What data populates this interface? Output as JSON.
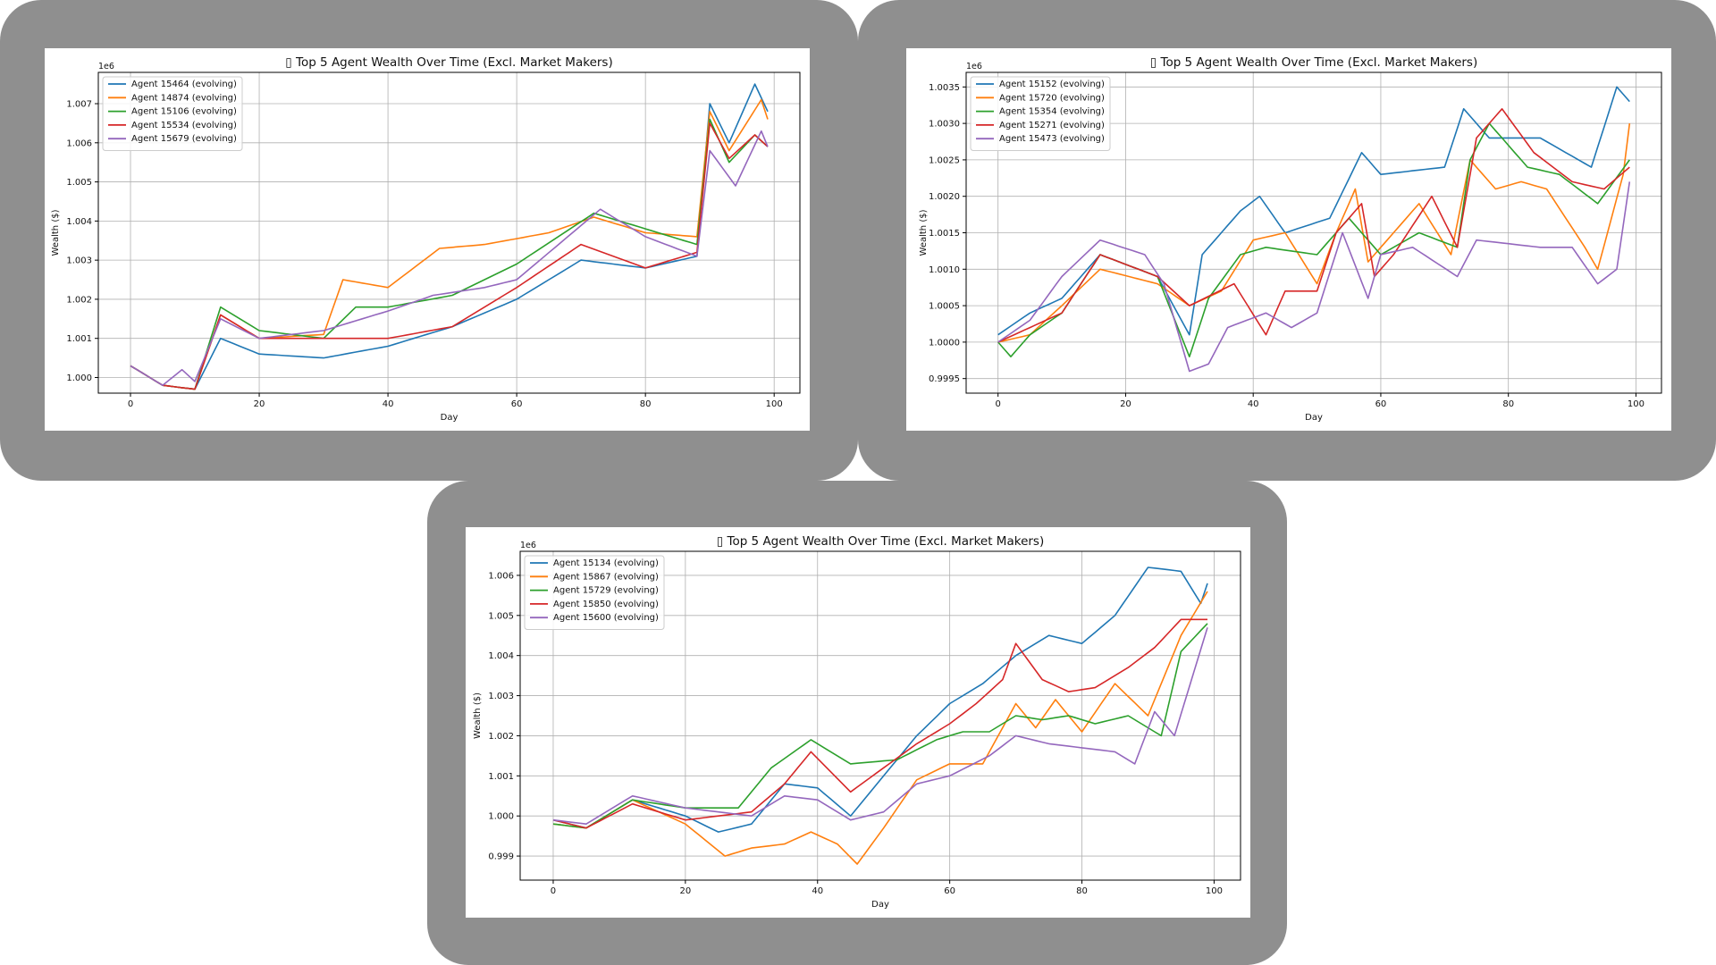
{
  "chart_data": [
    {
      "type": "line",
      "title": "▯ Top 5 Agent Wealth Over Time (Excl. Market Makers)",
      "xlabel": "Day",
      "ylabel": "Wealth ($)",
      "offset_label": "1e6",
      "xlim": [
        -5,
        104
      ],
      "ylim": [
        999600,
        1007800
      ],
      "xticks": [
        0,
        20,
        40,
        60,
        80,
        100
      ],
      "yticks": [
        1000000,
        1001000,
        1002000,
        1003000,
        1004000,
        1005000,
        1006000,
        1007000
      ],
      "ytick_labels": [
        "1.000",
        "1.001",
        "1.002",
        "1.003",
        "1.004",
        "1.005",
        "1.006",
        "1.007"
      ],
      "grid": true,
      "legend_position": "upper-left",
      "series": [
        {
          "name": "Agent 15464 (evolving)",
          "color": "#1f77b4",
          "kx": [
            0,
            5,
            10,
            14,
            20,
            30,
            40,
            50,
            60,
            70,
            80,
            88,
            90,
            93,
            97,
            99
          ],
          "ky": [
            1000300,
            999800,
            999700,
            1001000,
            1000600,
            1000500,
            1000800,
            1001300,
            1002000,
            1003000,
            1002800,
            1003100,
            1007000,
            1006000,
            1007500,
            1006800
          ]
        },
        {
          "name": "Agent 14874 (evolving)",
          "color": "#ff7f0e",
          "kx": [
            0,
            5,
            10,
            14,
            20,
            30,
            33,
            40,
            48,
            55,
            65,
            72,
            80,
            88,
            90,
            93,
            98,
            99
          ],
          "ky": [
            1000300,
            999800,
            999700,
            1001600,
            1001000,
            1001100,
            1002500,
            1002300,
            1003300,
            1003400,
            1003700,
            1004100,
            1003700,
            1003600,
            1006800,
            1005800,
            1007100,
            1006600
          ]
        },
        {
          "name": "Agent 15106 (evolving)",
          "color": "#2ca02c",
          "kx": [
            0,
            5,
            10,
            14,
            20,
            30,
            35,
            40,
            50,
            60,
            72,
            80,
            88,
            90,
            93,
            97,
            99
          ],
          "ky": [
            1000300,
            999800,
            999700,
            1001800,
            1001200,
            1001000,
            1001800,
            1001800,
            1002100,
            1002900,
            1004200,
            1003800,
            1003400,
            1006600,
            1005500,
            1006200,
            1005900
          ]
        },
        {
          "name": "Agent 15534 (evolving)",
          "color": "#d62728",
          "kx": [
            0,
            5,
            10,
            14,
            20,
            30,
            40,
            50,
            60,
            70,
            80,
            88,
            90,
            93,
            97,
            99
          ],
          "ky": [
            1000300,
            999800,
            999700,
            1001600,
            1001000,
            1001000,
            1001000,
            1001300,
            1002300,
            1003400,
            1002800,
            1003200,
            1006500,
            1005600,
            1006200,
            1005900
          ]
        },
        {
          "name": "Agent 15679 (evolving)",
          "color": "#9467bd",
          "kx": [
            0,
            5,
            8,
            10,
            14,
            20,
            30,
            40,
            47,
            55,
            60,
            73,
            80,
            88,
            90,
            94,
            98,
            99
          ],
          "ky": [
            1000300,
            999800,
            1000200,
            999900,
            1001500,
            1001000,
            1001200,
            1001700,
            1002100,
            1002300,
            1002500,
            1004300,
            1003600,
            1003100,
            1005800,
            1004900,
            1006300,
            1005900
          ]
        }
      ]
    },
    {
      "type": "line",
      "title": "▯ Top 5 Agent Wealth Over Time (Excl. Market Makers)",
      "xlabel": "Day",
      "ylabel": "Wealth ($)",
      "offset_label": "1e6",
      "xlim": [
        -5,
        104
      ],
      "ylim": [
        999300,
        1003700
      ],
      "xticks": [
        0,
        20,
        40,
        60,
        80,
        100
      ],
      "yticks": [
        999500,
        1000000,
        1000500,
        1001000,
        1001500,
        1002000,
        1002500,
        1003000,
        1003500
      ],
      "ytick_labels": [
        "0.9995",
        "1.0000",
        "1.0005",
        "1.0010",
        "1.0015",
        "1.0020",
        "1.0025",
        "1.0030",
        "1.0035"
      ],
      "grid": true,
      "legend_position": "upper-left",
      "series": [
        {
          "name": "Agent 15152 (evolving)",
          "color": "#1f77b4",
          "kx": [
            0,
            5,
            10,
            16,
            25,
            30,
            32,
            38,
            41,
            45,
            52,
            57,
            60,
            70,
            73,
            77,
            85,
            93,
            97,
            99
          ],
          "ky": [
            1000100,
            1000400,
            1000600,
            1001200,
            1000900,
            1000100,
            1001200,
            1001800,
            1002000,
            1001500,
            1001700,
            1002600,
            1002300,
            1002400,
            1003200,
            1002800,
            1002800,
            1002400,
            1003500,
            1003300
          ]
        },
        {
          "name": "Agent 15720 (evolving)",
          "color": "#ff7f0e",
          "kx": [
            0,
            5,
            10,
            16,
            25,
            30,
            35,
            40,
            45,
            50,
            53,
            56,
            58,
            60,
            66,
            71,
            74,
            78,
            82,
            86,
            92,
            94,
            98,
            99
          ],
          "ky": [
            1000000,
            1000100,
            1000500,
            1001000,
            1000800,
            1000500,
            1000700,
            1001400,
            1001500,
            1000800,
            1001500,
            1002100,
            1001100,
            1001300,
            1001900,
            1001200,
            1002500,
            1002100,
            1002200,
            1002100,
            1001300,
            1001000,
            1002300,
            1003000
          ]
        },
        {
          "name": "Agent 15354 (evolving)",
          "color": "#2ca02c",
          "kx": [
            0,
            2,
            5,
            10,
            16,
            25,
            30,
            33,
            38,
            42,
            50,
            55,
            60,
            66,
            72,
            74,
            77,
            83,
            88,
            94,
            99
          ],
          "ky": [
            1000000,
            999800,
            1000100,
            1000400,
            1001200,
            1000900,
            999800,
            1000600,
            1001200,
            1001300,
            1001200,
            1001700,
            1001200,
            1001500,
            1001300,
            1002500,
            1003000,
            1002400,
            1002300,
            1001900,
            1002500
          ]
        },
        {
          "name": "Agent 15271 (evolving)",
          "color": "#d62728",
          "kx": [
            0,
            5,
            10,
            16,
            25,
            30,
            37,
            42,
            45,
            50,
            53,
            57,
            59,
            62,
            68,
            72,
            75,
            79,
            84,
            90,
            95,
            99
          ],
          "ky": [
            1000000,
            1000200,
            1000400,
            1001200,
            1000900,
            1000500,
            1000800,
            1000100,
            1000700,
            1000700,
            1001500,
            1001900,
            1000900,
            1001200,
            1002000,
            1001300,
            1002800,
            1003200,
            1002600,
            1002200,
            1002100,
            1002400
          ]
        },
        {
          "name": "Agent 15473 (evolving)",
          "color": "#9467bd",
          "kx": [
            0,
            5,
            10,
            16,
            23,
            26,
            30,
            33,
            36,
            42,
            46,
            50,
            54,
            58,
            60,
            65,
            72,
            75,
            85,
            90,
            94,
            97,
            99
          ],
          "ky": [
            1000000,
            1000300,
            1000900,
            1001400,
            1001200,
            1000800,
            999600,
            999700,
            1000200,
            1000400,
            1000200,
            1000400,
            1001500,
            1000600,
            1001200,
            1001300,
            1000900,
            1001400,
            1001300,
            1001300,
            1000800,
            1001000,
            1002200
          ]
        }
      ]
    },
    {
      "type": "line",
      "title": "▯ Top 5 Agent Wealth Over Time (Excl. Market Makers)",
      "xlabel": "Day",
      "ylabel": "Wealth ($)",
      "offset_label": "1e6",
      "xlim": [
        -5,
        104
      ],
      "ylim": [
        998400,
        1006600
      ],
      "xticks": [
        0,
        20,
        40,
        60,
        80,
        100
      ],
      "yticks": [
        999000,
        1000000,
        1001000,
        1002000,
        1003000,
        1004000,
        1005000,
        1006000
      ],
      "ytick_labels": [
        "0.999",
        "1.000",
        "1.001",
        "1.002",
        "1.003",
        "1.004",
        "1.005",
        "1.006"
      ],
      "grid": true,
      "legend_position": "upper-left",
      "series": [
        {
          "name": "Agent 15134 (evolving)",
          "color": "#1f77b4",
          "kx": [
            0,
            5,
            12,
            20,
            25,
            30,
            35,
            40,
            45,
            50,
            55,
            60,
            65,
            70,
            75,
            80,
            85,
            90,
            95,
            98,
            99
          ],
          "ky": [
            999900,
            999700,
            1000400,
            1000000,
            999600,
            999800,
            1000800,
            1000700,
            1000000,
            1001000,
            1002000,
            1002800,
            1003300,
            1004000,
            1004500,
            1004300,
            1005000,
            1006200,
            1006100,
            1005300,
            1005800
          ]
        },
        {
          "name": "Agent 15867 (evolving)",
          "color": "#ff7f0e",
          "kx": [
            0,
            5,
            12,
            20,
            26,
            30,
            35,
            39,
            43,
            46,
            50,
            55,
            60,
            65,
            70,
            73,
            76,
            80,
            85,
            90,
            95,
            99
          ],
          "ky": [
            999800,
            999700,
            1000400,
            999800,
            999000,
            999200,
            999300,
            999600,
            999300,
            998800,
            999700,
            1000900,
            1001300,
            1001300,
            1002800,
            1002200,
            1002900,
            1002100,
            1003300,
            1002500,
            1004500,
            1005600
          ]
        },
        {
          "name": "Agent 15729 (evolving)",
          "color": "#2ca02c",
          "kx": [
            0,
            5,
            12,
            20,
            28,
            33,
            39,
            45,
            52,
            58,
            62,
            66,
            70,
            74,
            78,
            82,
            87,
            92,
            95,
            99
          ],
          "ky": [
            999800,
            999700,
            1000400,
            1000200,
            1000200,
            1001200,
            1001900,
            1001300,
            1001400,
            1001900,
            1002100,
            1002100,
            1002500,
            1002400,
            1002500,
            1002300,
            1002500,
            1002000,
            1004100,
            1004800
          ]
        },
        {
          "name": "Agent 15850 (evolving)",
          "color": "#d62728",
          "kx": [
            0,
            5,
            12,
            20,
            30,
            35,
            39,
            45,
            50,
            55,
            60,
            64,
            68,
            70,
            74,
            78,
            82,
            87,
            91,
            95,
            99
          ],
          "ky": [
            999900,
            999700,
            1000300,
            999900,
            1000100,
            1000800,
            1001600,
            1000600,
            1001200,
            1001800,
            1002300,
            1002800,
            1003400,
            1004300,
            1003400,
            1003100,
            1003200,
            1003700,
            1004200,
            1004900,
            1004900
          ]
        },
        {
          "name": "Agent 15600 (evolving)",
          "color": "#9467bd",
          "kx": [
            0,
            5,
            12,
            20,
            30,
            35,
            40,
            45,
            50,
            55,
            60,
            66,
            70,
            75,
            80,
            85,
            88,
            91,
            94,
            99
          ],
          "ky": [
            999900,
            999800,
            1000500,
            1000200,
            1000000,
            1000500,
            1000400,
            999900,
            1000100,
            1000800,
            1001000,
            1001500,
            1002000,
            1001800,
            1001700,
            1001600,
            1001300,
            1002600,
            1002000,
            1004700
          ]
        }
      ]
    }
  ]
}
